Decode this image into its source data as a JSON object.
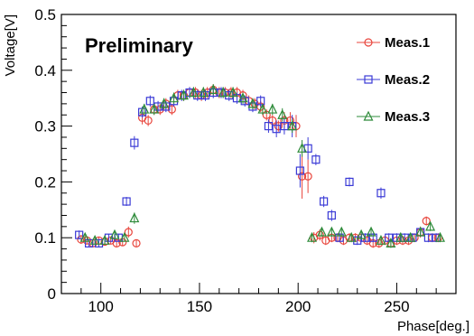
{
  "chart_data": {
    "type": "scatter",
    "xlabel": "Phase[deg.]",
    "ylabel": "Voltage[V]",
    "annotation": "Preliminary",
    "xlim": [
      80,
      280
    ],
    "ylim": [
      0,
      0.5
    ],
    "xticks": [
      100,
      150,
      200,
      250
    ],
    "yticks": [
      0,
      0.1,
      0.2,
      0.3,
      0.4,
      0.5
    ],
    "xtick_labels": [
      "100",
      "150",
      "200",
      "250"
    ],
    "ytick_labels": [
      "0",
      "0.1",
      "0.2",
      "0.3",
      "0.4",
      "0.5"
    ],
    "grid": false,
    "legend_position": "top-right",
    "series": [
      {
        "name": "Meas.1",
        "marker": "circle",
        "color": "#e8453c",
        "x": [
          90,
          93,
          96,
          99,
          102,
          105,
          108,
          111,
          114,
          118,
          121,
          124,
          127,
          130,
          133,
          136,
          139,
          142,
          145,
          148,
          151,
          154,
          157,
          160,
          163,
          166,
          169,
          172,
          175,
          178,
          181,
          184,
          187,
          190,
          193,
          196,
          199,
          202,
          205,
          208,
          211,
          214,
          217,
          220,
          223,
          226,
          229,
          232,
          235,
          238,
          241,
          244,
          247,
          250,
          253,
          256,
          259,
          262,
          265,
          268,
          271
        ],
        "y": [
          0.097,
          0.095,
          0.09,
          0.095,
          0.093,
          0.095,
          0.09,
          0.092,
          0.11,
          0.09,
          0.315,
          0.31,
          0.33,
          0.33,
          0.34,
          0.33,
          0.355,
          0.355,
          0.36,
          0.36,
          0.355,
          0.36,
          0.365,
          0.36,
          0.36,
          0.36,
          0.36,
          0.355,
          0.345,
          0.34,
          0.335,
          0.32,
          0.31,
          0.3,
          0.31,
          0.31,
          0.3,
          0.21,
          0.21,
          0.1,
          0.105,
          0.095,
          0.1,
          0.1,
          0.095,
          0.1,
          0.1,
          0.1,
          0.095,
          0.09,
          0.09,
          0.095,
          0.09,
          0.095,
          0.095,
          0.095,
          0.1,
          0.11,
          0.13,
          0.1,
          0.1
        ],
        "yerr": [
          0.008,
          0.006,
          0.006,
          0.006,
          0.006,
          0.006,
          0.006,
          0.006,
          0.01,
          0.006,
          0.012,
          0.01,
          0.01,
          0.01,
          0.01,
          0.01,
          0.01,
          0.01,
          0.01,
          0.01,
          0.01,
          0.01,
          0.01,
          0.01,
          0.01,
          0.01,
          0.01,
          0.01,
          0.01,
          0.01,
          0.01,
          0.01,
          0.01,
          0.01,
          0.015,
          0.015,
          0.02,
          0.04,
          0.03,
          0.01,
          0.01,
          0.008,
          0.008,
          0.008,
          0.008,
          0.008,
          0.008,
          0.008,
          0.008,
          0.008,
          0.008,
          0.008,
          0.008,
          0.008,
          0.008,
          0.008,
          0.008,
          0.01,
          0.008,
          0.008,
          0.008
        ]
      },
      {
        "name": "Meas.2",
        "marker": "square",
        "color": "#3a3ad6",
        "x": [
          89,
          94,
          99,
          104,
          109,
          113,
          117,
          121,
          125,
          129,
          133,
          137,
          141,
          145,
          149,
          153,
          157,
          161,
          165,
          169,
          173,
          177,
          181,
          185,
          189,
          193,
          197,
          201,
          205,
          209,
          213,
          217,
          221,
          226,
          230,
          234,
          238,
          242,
          246,
          250,
          254,
          258,
          262,
          266,
          270
        ],
        "y": [
          0.105,
          0.09,
          0.09,
          0.1,
          0.1,
          0.165,
          0.27,
          0.325,
          0.345,
          0.335,
          0.335,
          0.345,
          0.355,
          0.36,
          0.355,
          0.355,
          0.36,
          0.36,
          0.355,
          0.35,
          0.345,
          0.335,
          0.345,
          0.3,
          0.295,
          0.3,
          0.3,
          0.22,
          0.26,
          0.24,
          0.165,
          0.14,
          0.1,
          0.2,
          0.095,
          0.1,
          0.1,
          0.18,
          0.1,
          0.1,
          0.1,
          0.1,
          0.11,
          0.1,
          0.1
        ],
        "yerr": [
          0.008,
          0.006,
          0.006,
          0.006,
          0.006,
          0.008,
          0.012,
          0.01,
          0.01,
          0.01,
          0.01,
          0.01,
          0.01,
          0.01,
          0.01,
          0.01,
          0.01,
          0.01,
          0.01,
          0.01,
          0.01,
          0.01,
          0.01,
          0.012,
          0.015,
          0.015,
          0.02,
          0.03,
          0.02,
          0.01,
          0.01,
          0.01,
          0.008,
          0.008,
          0.008,
          0.008,
          0.008,
          0.01,
          0.008,
          0.008,
          0.008,
          0.008,
          0.008,
          0.008,
          0.008
        ]
      },
      {
        "name": "Meas.3",
        "marker": "triangle",
        "color": "#2e8b3a",
        "x": [
          92,
          97,
          102,
          107,
          112,
          117,
          122,
          127,
          132,
          137,
          142,
          147,
          152,
          157,
          162,
          167,
          172,
          177,
          182,
          187,
          192,
          197,
          202,
          207,
          212,
          217,
          222,
          227,
          232,
          237,
          242,
          247,
          252,
          257,
          262,
          267,
          272
        ],
        "y": [
          0.1,
          0.095,
          0.095,
          0.105,
          0.1,
          0.135,
          0.33,
          0.33,
          0.34,
          0.35,
          0.355,
          0.36,
          0.36,
          0.365,
          0.36,
          0.36,
          0.35,
          0.34,
          0.33,
          0.33,
          0.32,
          0.3,
          0.26,
          0.1,
          0.11,
          0.11,
          0.11,
          0.1,
          0.105,
          0.11,
          0.095,
          0.09,
          0.1,
          0.1,
          0.11,
          0.12,
          0.1
        ],
        "yerr": [
          0.006,
          0.006,
          0.006,
          0.006,
          0.006,
          0.01,
          0.01,
          0.01,
          0.01,
          0.01,
          0.01,
          0.01,
          0.01,
          0.01,
          0.01,
          0.01,
          0.01,
          0.01,
          0.01,
          0.01,
          0.012,
          0.012,
          0.015,
          0.008,
          0.008,
          0.008,
          0.008,
          0.008,
          0.008,
          0.008,
          0.008,
          0.008,
          0.008,
          0.008,
          0.008,
          0.008,
          0.008
        ]
      }
    ]
  }
}
